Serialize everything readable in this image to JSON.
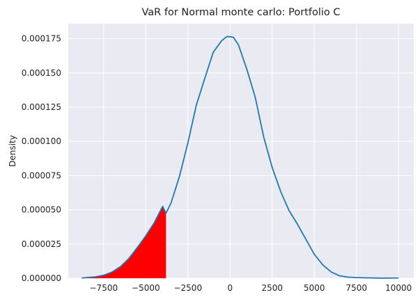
{
  "chart_data": {
    "type": "area",
    "title": "VaR for Normal monte carlo: Portfolio C",
    "xlabel": "",
    "ylabel": "Density",
    "xlim": [
      -9600,
      10900
    ],
    "ylim": [
      0,
      0.000186
    ],
    "grid": true,
    "legend": "none",
    "x_ticks": [
      -7500,
      -5000,
      -2500,
      0,
      2500,
      5000,
      7500,
      10000
    ],
    "x_tick_labels": [
      "−7500",
      "−5000",
      "−2500",
      "0",
      "2500",
      "5000",
      "7500",
      "10000"
    ],
    "y_ticks": [
      0,
      2.5e-05,
      5e-05,
      7.5e-05,
      0.0001,
      0.000125,
      0.00015,
      0.000175
    ],
    "y_tick_labels": [
      "0.000000",
      "0.000025",
      "0.000050",
      "0.000075",
      "0.000100",
      "0.000125",
      "0.000150",
      "0.000175"
    ],
    "series": [
      {
        "color": "#1f77b4",
        "x": [
          -8800,
          -8000,
          -7500,
          -7000,
          -6500,
          -6000,
          -5500,
          -5000,
          -4500,
          -4000,
          -3800,
          -3500,
          -3000,
          -2500,
          -2000,
          -1500,
          -1000,
          -500,
          -200,
          0,
          200,
          500,
          1000,
          1500,
          2000,
          2500,
          3000,
          3500,
          4000,
          4500,
          5000,
          5500,
          6000,
          6500,
          7000,
          7500,
          8000,
          9000,
          10000
        ],
        "y": [
          2e-07,
          1e-06,
          2.2e-06,
          4.5e-06,
          8.5e-06,
          1.45e-05,
          2.25e-05,
          3.1e-05,
          4.05e-05,
          5.25e-05,
          4.75e-05,
          5.5e-05,
          7.45e-05,
          9.9e-05,
          0.0001265,
          0.000146,
          0.000165,
          0.0001735,
          0.0001765,
          0.0001765,
          0.000176,
          0.0001705,
          0.0001525,
          0.000132,
          0.000103,
          8.1e-05,
          6.35e-05,
          4.95e-05,
          3.95e-05,
          2.85e-05,
          1.75e-05,
          9.8e-06,
          4.6e-06,
          1.8e-06,
          8e-07,
          5e-07,
          3e-07,
          1e-07,
          2e-07
        ]
      }
    ],
    "shaded_region": {
      "color": "#ff0000",
      "x_max": -3800
    }
  }
}
